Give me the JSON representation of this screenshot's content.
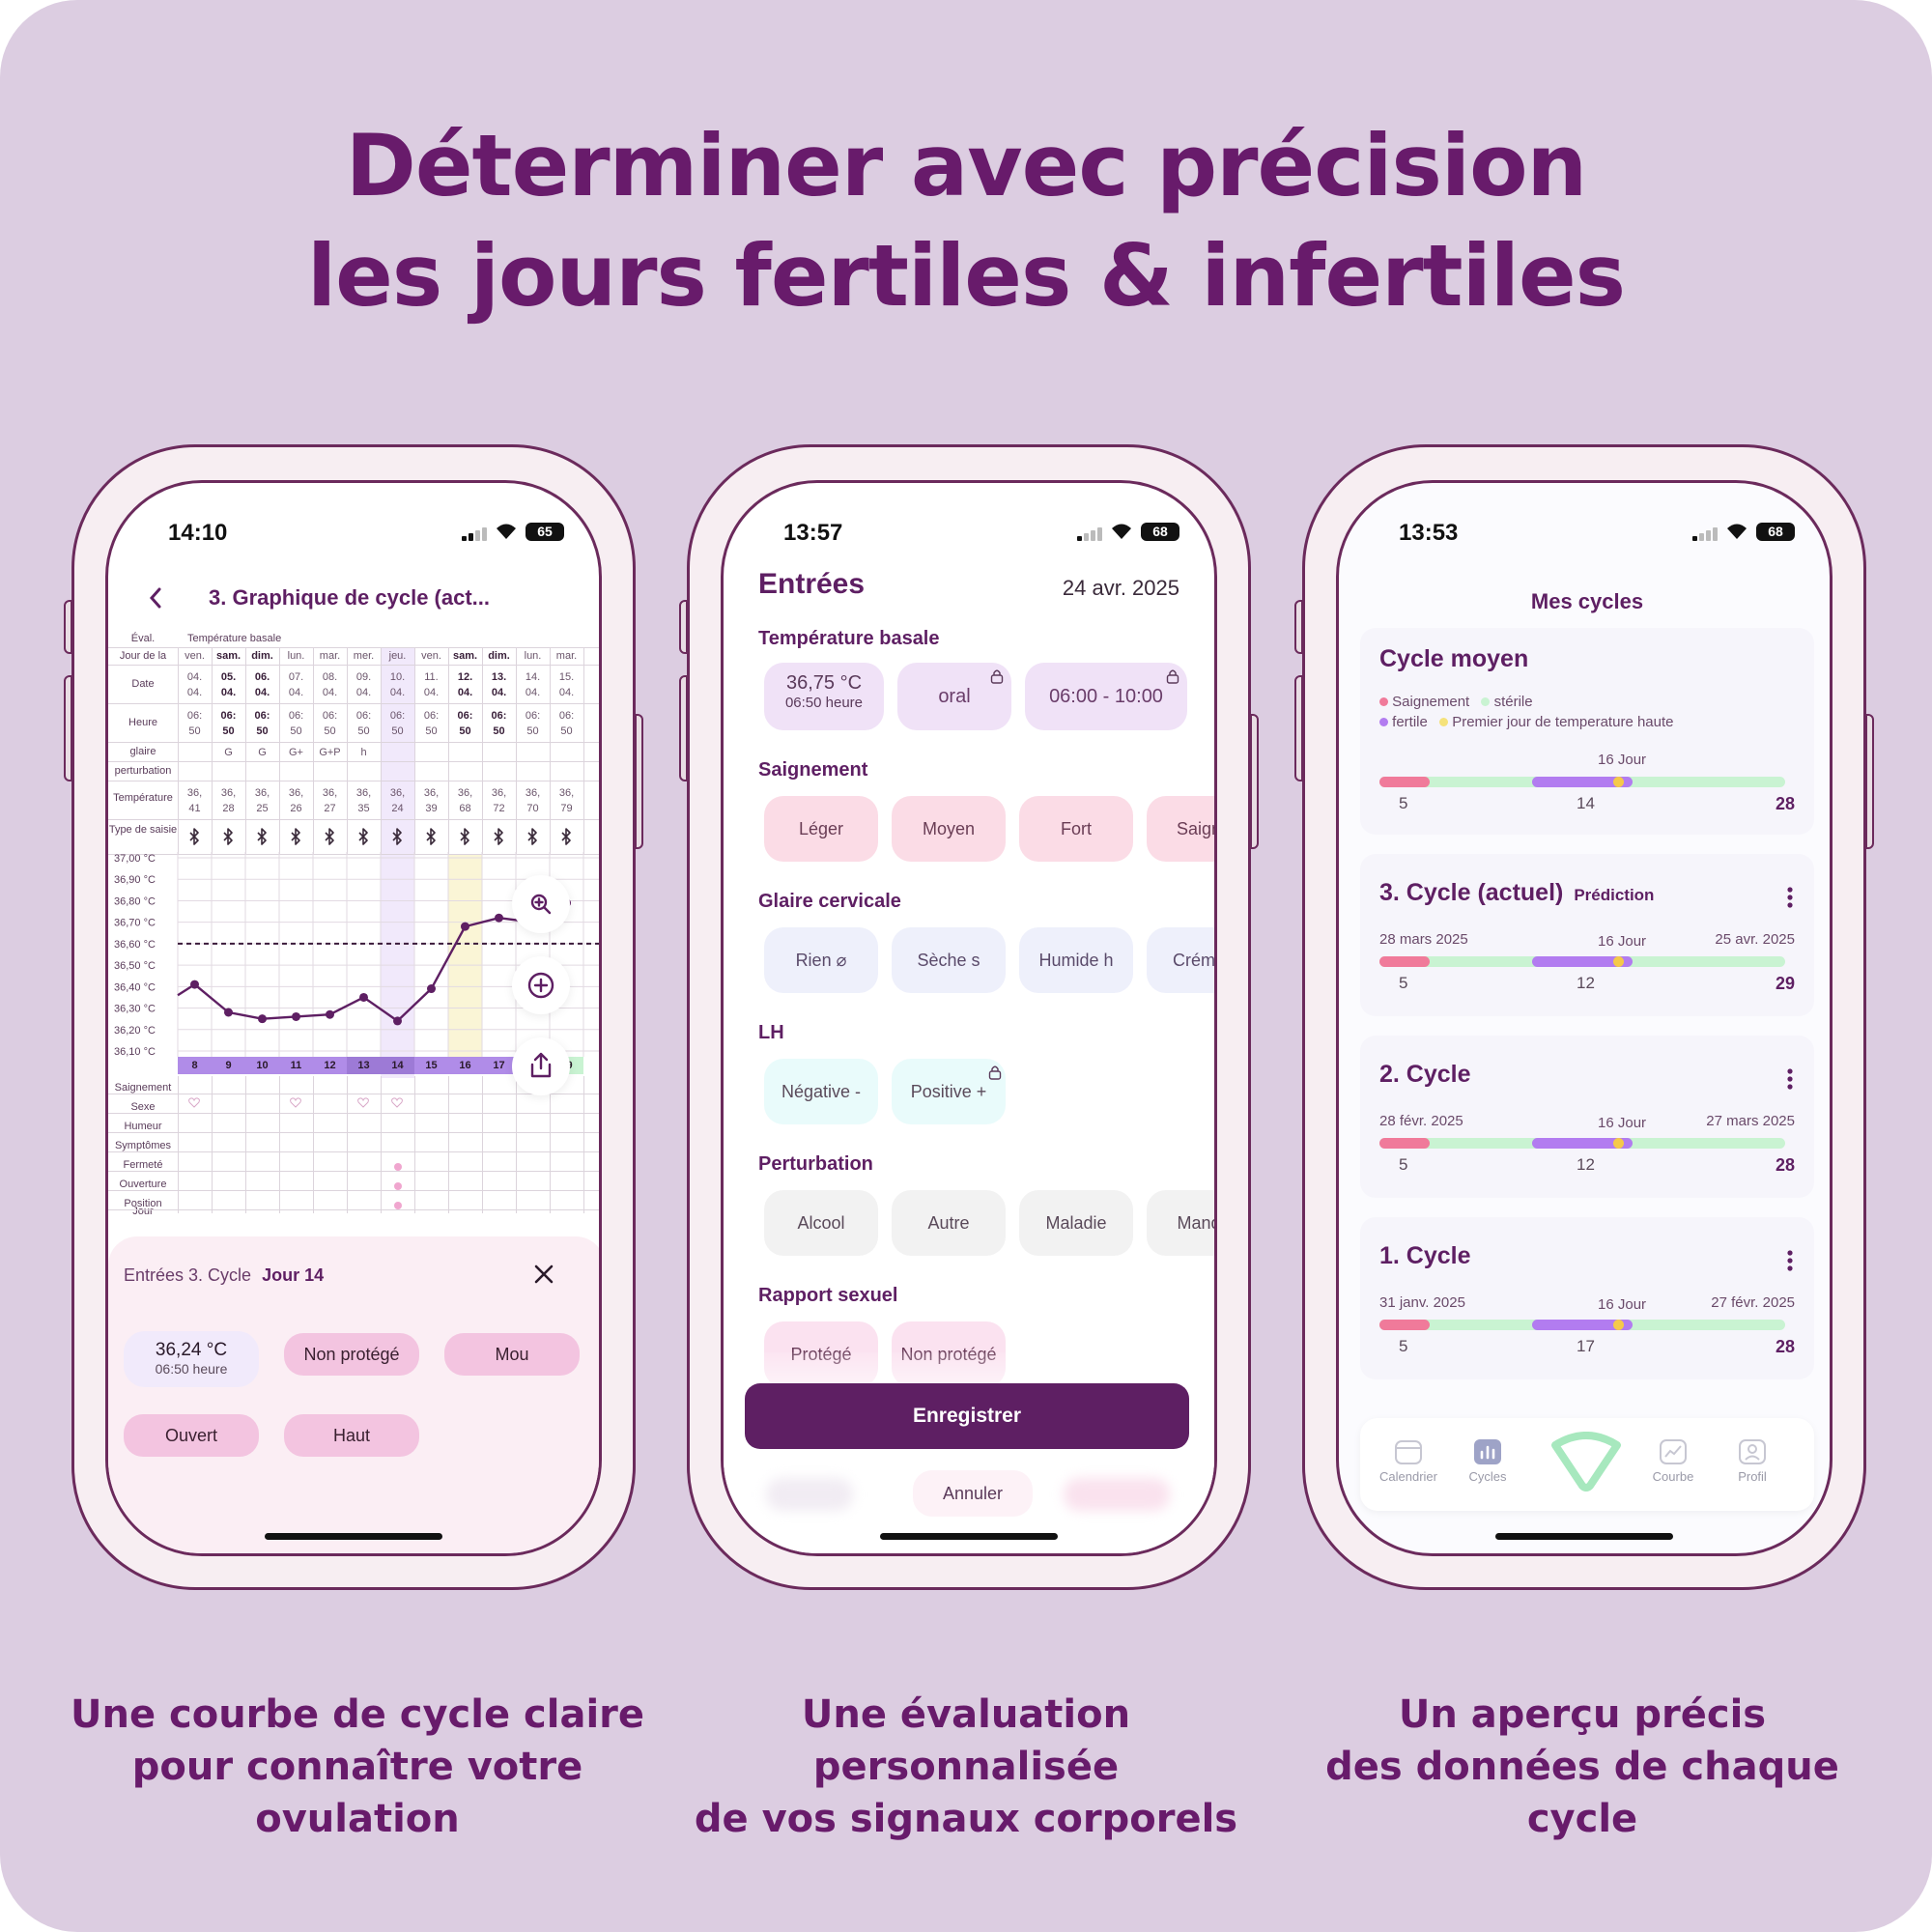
{
  "headline": {
    "line1": "Déterminer avec précision",
    "line2": "les  jours fertiles & infertiles"
  },
  "captions": [
    {
      "line1": "Une courbe de cycle claire",
      "line2": "pour connaître votre ovulation"
    },
    {
      "line1": "Une évaluation personnalisée",
      "line2": "de vos signaux corporels"
    },
    {
      "line1": "Un aperçu précis",
      "line2": "des données de chaque cycle"
    }
  ],
  "colors": {
    "background": "#dccde1",
    "brand": "#681b6b",
    "bleeding": "#f07a9a",
    "sterile": "#c9f3d2",
    "fertile": "#b27cf0",
    "high_temp": "#f5c94a"
  },
  "phone1": {
    "status": {
      "time": "14:10",
      "battery": "65"
    },
    "header": {
      "back_icon": "chevron-left-icon",
      "title": "3. Graphique de cycle  (act..."
    },
    "table": {
      "eval_label": "Éval.",
      "basal_label": "Température basale",
      "weekday_label": "Jour de la",
      "weekdays": [
        "ven.",
        "sam.",
        "dim.",
        "lun.",
        "mar.",
        "mer.",
        "jeu.",
        "ven.",
        "sam.",
        "dim.",
        "lun.",
        "mar."
      ],
      "date_label": "Date",
      "dates_top": [
        "04.",
        "05.",
        "06.",
        "07.",
        "08.",
        "09.",
        "10.",
        "11.",
        "12.",
        "13.",
        "14.",
        "15."
      ],
      "dates_bottom": [
        "04.",
        "04.",
        "04.",
        "04.",
        "04.",
        "04.",
        "04.",
        "04.",
        "04.",
        "04.",
        "04.",
        "04."
      ],
      "bold_columns": [
        1,
        2,
        8,
        9
      ],
      "time_label": "Heure",
      "times_top": [
        "06:",
        "06:",
        "06:",
        "06:",
        "06:",
        "06:",
        "06:",
        "06:",
        "06:",
        "06:",
        "06:",
        "06:"
      ],
      "times_bottom": [
        "50",
        "50",
        "50",
        "50",
        "50",
        "50",
        "50",
        "50",
        "50",
        "50",
        "50",
        "50"
      ],
      "mucus_label": "glaire",
      "mucus": [
        "",
        "G",
        "G",
        "G+",
        "G+P",
        "h",
        "",
        "",
        "",
        "",
        "",
        ""
      ],
      "disturb_label": "perturbation",
      "temp_label": "Température",
      "temps_top": [
        "36,",
        "36,",
        "36,",
        "36,",
        "36,",
        "36,",
        "36,",
        "36,",
        "36,",
        "36,",
        "36,",
        "36,"
      ],
      "temps_bottom": [
        "41",
        "28",
        "25",
        "26",
        "27",
        "35",
        "24",
        "39",
        "68",
        "72",
        "70",
        "79"
      ],
      "entry_type_label": "Type de saisie",
      "entry_icon": "bluetooth-icon"
    },
    "chart_data": {
      "type": "line",
      "x": [
        7,
        8,
        9,
        10,
        11,
        12,
        13,
        14,
        15,
        16,
        17,
        18,
        19
      ],
      "values": [
        36.36,
        36.41,
        36.28,
        36.25,
        36.26,
        36.27,
        36.35,
        36.24,
        36.39,
        36.68,
        36.72,
        36.7,
        36.79
      ],
      "ylim": [
        36.1,
        37.0
      ],
      "yticks": [
        "37,00 °C",
        "36,90 °C",
        "36,80 °C",
        "36,70 °C",
        "36,60 °C",
        "36,50 °C",
        "36,40 °C",
        "36,30 °C",
        "36,20 °C",
        "36,10 °C"
      ],
      "coverline": 36.6,
      "highlight_day": 14,
      "high_temp_day": 16,
      "grid": true
    },
    "day_row": {
      "label": "Jour",
      "days": [
        "8",
        "9",
        "10",
        "11",
        "12",
        "13",
        "14",
        "15",
        "16",
        "17",
        "18",
        "19"
      ]
    },
    "lower_labels": [
      "Saignement",
      "Sexe",
      "Humeur",
      "Symptômes",
      "Fermeté",
      "Ouverture",
      "Position"
    ],
    "fabs": [
      "zoom-in-icon",
      "add-circle-icon",
      "share-icon"
    ],
    "panel": {
      "title_prefix": "Entrées 3. Cycle",
      "title_day": "Jour 14",
      "close_icon": "close-icon",
      "temp_value": "36,24 °C",
      "temp_time": "06:50 heure",
      "chips": [
        "Non protégé",
        "Mou",
        "Ouvert",
        "Haut"
      ]
    }
  },
  "phone2": {
    "status": {
      "time": "13:57",
      "battery": "68"
    },
    "title": "Entrées",
    "date": "24 avr. 2025",
    "sections": {
      "temperature": {
        "label": "Température basale",
        "value": "36,75 °C",
        "time": "06:50 heure",
        "method": "oral",
        "window": "06:00 - 10:00"
      },
      "bleeding": {
        "label": "Saignement",
        "options": [
          "Léger",
          "Moyen",
          "Fort",
          "Saigne"
        ]
      },
      "mucus": {
        "label": "Glaire cervicale",
        "options": [
          "Rien ⌀",
          "Sèche s",
          "Humide h",
          "Crémeu"
        ]
      },
      "lh": {
        "label": "LH",
        "options": [
          "Négative -",
          "Positive +"
        ]
      },
      "disturbance": {
        "label": "Perturbation",
        "options": [
          "Alcool",
          "Autre",
          "Maladie",
          "Manqu"
        ]
      },
      "sex": {
        "label": "Rapport sexuel",
        "options": [
          "Protégé",
          "Non protégé"
        ]
      }
    },
    "save_label": "Enregistrer",
    "cancel_label": "Annuler"
  },
  "phone3": {
    "status": {
      "time": "13:53",
      "battery": "68"
    },
    "title": "Mes cycles",
    "average": {
      "title": "Cycle moyen",
      "legend": [
        "Saignement",
        "stérile",
        "fertile",
        "Premier  jour de temperature haute"
      ],
      "ovulation_label": "16 Jour",
      "nums": [
        "5",
        "14",
        "28"
      ]
    },
    "cycles": [
      {
        "title": "3. Cycle (actuel)",
        "badge": "Prédiction",
        "start": "28 mars 2025",
        "ovulation": "16 Jour",
        "end": "25 avr. 2025",
        "nums": [
          "5",
          "12",
          "29"
        ]
      },
      {
        "title": "2. Cycle",
        "badge": "",
        "start": "28 févr. 2025",
        "ovulation": "16 Jour",
        "end": "27 mars 2025",
        "nums": [
          "5",
          "12",
          "28"
        ]
      },
      {
        "title": "1. Cycle",
        "badge": "",
        "start": "31 janv. 2025",
        "ovulation": "16 Jour",
        "end": "27 févr. 2025",
        "nums": [
          "5",
          "17",
          "28"
        ]
      }
    ],
    "tabs": [
      "Calendrier",
      "Cycles",
      "Courbe",
      "Profil"
    ]
  }
}
